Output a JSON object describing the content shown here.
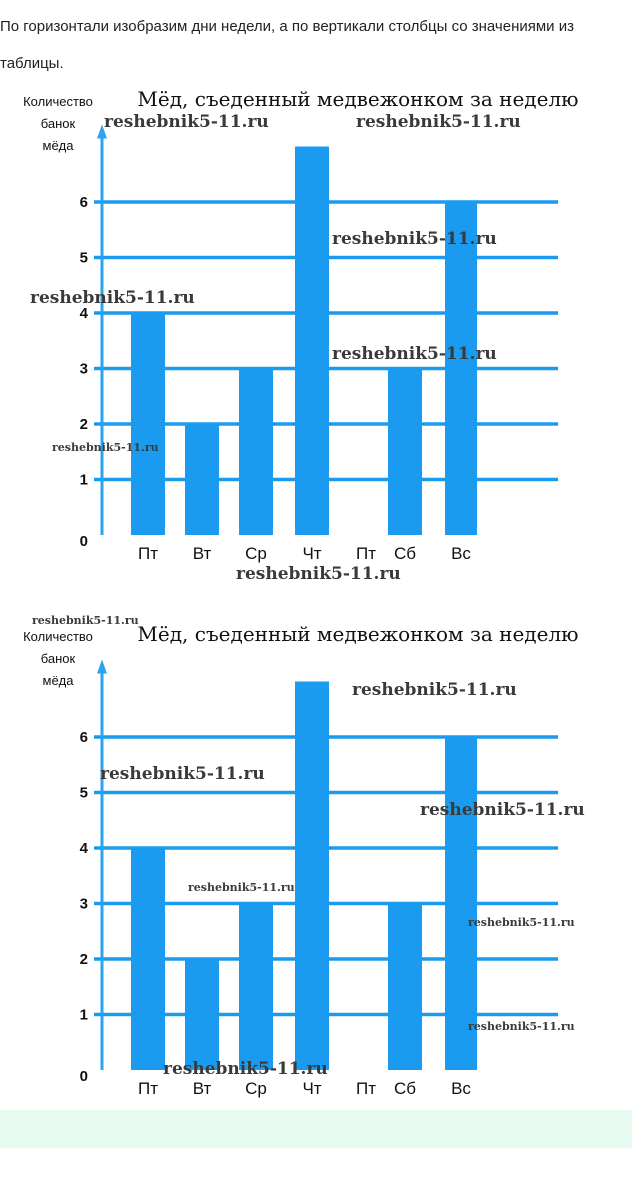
{
  "intro_text": "По горизонтали изобразим дни недели, а по вертикали столбцы со значениями из таблицы.",
  "colors": {
    "bar": "#1a9bf0",
    "grid": "#1a9bf0",
    "axis": "#2aa4f0"
  },
  "chart_data": [
    {
      "type": "bar",
      "title": "Мёд, съеденный медвежонком за неделю",
      "ylabel": [
        "Количество",
        "банок",
        "мёда"
      ],
      "categories": [
        "Пт",
        "Вт",
        "Ср",
        "Чт",
        "Пт",
        "Сб",
        "Вс"
      ],
      "values": [
        4,
        2,
        3,
        7,
        0,
        3,
        6
      ],
      "yticks": [
        0,
        1,
        2,
        3,
        4,
        5,
        6
      ],
      "ylim": [
        0,
        7
      ],
      "grid": true
    },
    {
      "type": "bar",
      "title": "Мёд, съеденный медвежонком за неделю",
      "ylabel": [
        "Количество",
        "банок",
        "мёда"
      ],
      "categories": [
        "Пт",
        "Вт",
        "Ср",
        "Чт",
        "Пт",
        "Сб",
        "Вс"
      ],
      "values": [
        4,
        2,
        3,
        7,
        0,
        3,
        6
      ],
      "yticks": [
        0,
        1,
        2,
        3,
        4,
        5,
        6
      ],
      "ylim": [
        0,
        7
      ],
      "grid": true
    }
  ],
  "watermarks": [
    [
      "reshebnik5-11.ru",
      "reshebnik5-11.ru",
      "reshebnik5-11.ru",
      "reshebnik5-11.ru",
      "reshebnik5-11.ru",
      "reshebnik5-11.ru",
      "reshebnik5-11.ru"
    ],
    [
      "reshebnik5-11.ru",
      "reshebnik5-11.ru",
      "reshebnik5-11.ru",
      "reshebnik5-11.ru",
      "reshebnik5-11.ru",
      "reshebnik5-11.ru",
      "reshebnik5-11.ru",
      "reshebnik5-11.ru"
    ]
  ]
}
